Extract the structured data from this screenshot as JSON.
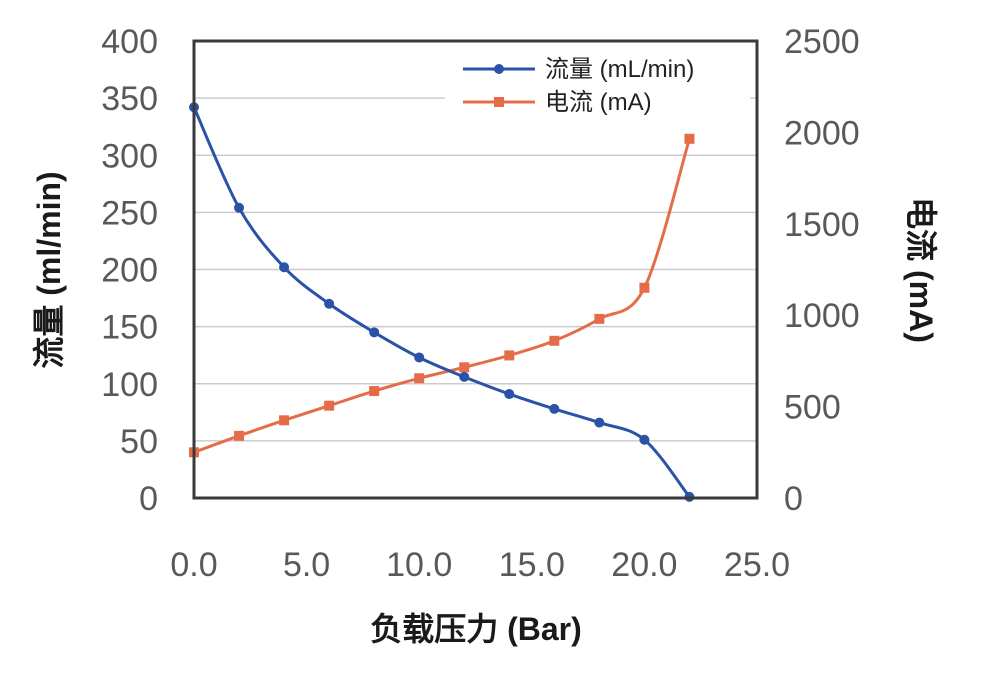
{
  "chart_data": {
    "type": "line",
    "title": "",
    "xlabel": "负载压力 (Bar)",
    "ylabel_left": "流量 (ml/min)",
    "ylabel_right": "电流 (mA)",
    "xlim": [
      0,
      25
    ],
    "ylim_left": [
      0,
      400
    ],
    "ylim_right": [
      0,
      2500
    ],
    "x_ticks": [
      "0.0",
      "5.0",
      "10.0",
      "15.0",
      "20.0",
      "25.0"
    ],
    "y_left_ticks": [
      "0",
      "50",
      "100",
      "150",
      "200",
      "250",
      "300",
      "350",
      "400"
    ],
    "y_right_ticks": [
      "0",
      "500",
      "1000",
      "1500",
      "2000",
      "2500"
    ],
    "grid": "horizontal",
    "legend_position": "top-right",
    "series": [
      {
        "name": "流量 (mL/min)",
        "axis": "left",
        "color": "#2a52a7",
        "marker": "circle",
        "x": [
          0,
          2,
          4,
          6,
          8,
          10,
          12,
          14,
          16,
          18,
          20,
          22
        ],
        "y": [
          342,
          254,
          202,
          170,
          145,
          123,
          106,
          91,
          78,
          66,
          51,
          1
        ]
      },
      {
        "name": "电流 (mA)",
        "axis": "right",
        "color": "#e56c49",
        "marker": "square",
        "x": [
          0,
          2,
          4,
          6,
          8,
          10,
          12,
          14,
          16,
          18,
          20,
          22
        ],
        "y": [
          250,
          340,
          425,
          505,
          585,
          655,
          715,
          780,
          860,
          980,
          1150,
          1965
        ]
      }
    ]
  }
}
